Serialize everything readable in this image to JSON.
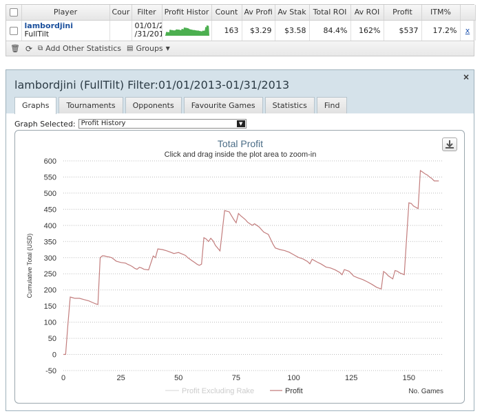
{
  "stats": {
    "columns": [
      "Player",
      "Cour",
      "Filter",
      "Profit Histor",
      "Count",
      "Av Profi",
      "Av Stak",
      "Total ROI",
      "Av ROI",
      "Profit",
      "ITM%"
    ],
    "row": {
      "player_name": "lambordjini",
      "site": "FullTilt",
      "filter_line1": "01/01/2",
      "filter_line2": "/31/201",
      "count": "163",
      "av_profit": "$3.29",
      "av_stake": "$3.58",
      "total_roi": "84.4%",
      "av_roi": "162%",
      "profit": "$537",
      "itm": "17.2%",
      "remove": "x"
    },
    "footer": {
      "add_label": "Add Other Statistics",
      "groups_label": "Groups"
    }
  },
  "dialog": {
    "title": "lambordjini (FullTilt) Filter:01/01/2013-01/31/2013",
    "close": "×",
    "tabs": [
      "Graphs",
      "Tournaments",
      "Opponents",
      "Favourite Games",
      "Statistics",
      "Find"
    ],
    "graph_selected_label": "Graph Selected:",
    "graph_selected_value": "Profit History"
  },
  "chart_data": {
    "type": "line",
    "title": "Total Profit",
    "subtitle": "Click and drag inside the plot area to zoom-in",
    "ylabel": "Cumulative Total (USD)",
    "xlabel": "No. Games",
    "xlim": [
      0,
      165
    ],
    "ylim": [
      -50,
      600
    ],
    "x_ticks": [
      0,
      25,
      50,
      75,
      100,
      125,
      150
    ],
    "y_ticks": [
      -50,
      0,
      50,
      100,
      150,
      200,
      250,
      300,
      350,
      400,
      450,
      500,
      550,
      600
    ],
    "grid": true,
    "legend_position": "bottom",
    "series": [
      {
        "name": "Profit Excluding Rake",
        "color": "#dddddd",
        "values": []
      },
      {
        "name": "Profit",
        "color": "#c27c7c",
        "x": [
          0,
          1,
          2,
          3,
          4,
          5,
          7,
          9,
          11,
          13,
          14,
          15,
          16,
          17,
          18,
          19,
          20,
          21,
          23,
          25,
          27,
          28,
          29,
          30,
          31,
          32,
          33,
          34,
          35,
          37,
          39,
          40,
          41,
          43,
          45,
          48,
          50,
          53,
          54,
          55,
          56,
          57,
          58,
          59,
          60,
          61,
          62,
          63,
          64,
          65,
          66,
          68,
          70,
          72,
          73,
          74,
          75,
          76,
          77,
          78,
          79,
          80,
          81,
          82,
          83,
          85,
          87,
          89,
          91,
          92,
          94,
          96,
          98,
          100,
          102,
          104,
          106,
          107,
          108,
          110,
          112,
          114,
          116,
          118,
          120,
          121,
          122,
          124,
          125,
          126,
          128,
          130,
          132,
          134,
          136,
          138,
          139,
          140,
          141,
          142,
          143,
          144,
          145,
          146,
          148,
          150,
          151,
          152,
          154,
          155,
          156,
          157,
          158,
          159,
          160,
          161,
          162,
          163
        ],
        "values": [
          0,
          0,
          95,
          178,
          176,
          174,
          174,
          170,
          166,
          160,
          157,
          155,
          300,
          306,
          305,
          303,
          302,
          300,
          289,
          285,
          283,
          279,
          276,
          272,
          267,
          264,
          270,
          268,
          264,
          262,
          305,
          300,
          327,
          325,
          321,
          313,
          316,
          307,
          300,
          295,
          290,
          285,
          280,
          276,
          280,
          362,
          358,
          350,
          360,
          352,
          338,
          321,
          446,
          442,
          430,
          418,
          408,
          437,
          430,
          424,
          418,
          410,
          405,
          400,
          405,
          395,
          379,
          372,
          342,
          330,
          325,
          322,
          317,
          309,
          301,
          296,
          288,
          281,
          295,
          287,
          280,
          271,
          268,
          262,
          254,
          247,
          263,
          258,
          251,
          243,
          237,
          232,
          225,
          217,
          208,
          203,
          257,
          252,
          244,
          239,
          234,
          260,
          258,
          253,
          247,
          470,
          468,
          460,
          452,
          570,
          565,
          560,
          556,
          550,
          545,
          538,
          538,
          538
        ]
      }
    ]
  }
}
